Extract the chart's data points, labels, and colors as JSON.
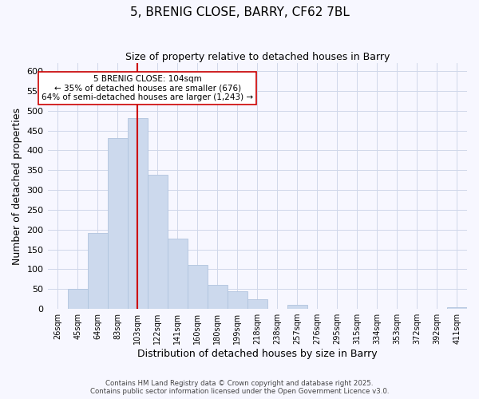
{
  "title": "5, BRENIG CLOSE, BARRY, CF62 7BL",
  "subtitle": "Size of property relative to detached houses in Barry",
  "xlabel": "Distribution of detached houses by size in Barry",
  "ylabel": "Number of detached properties",
  "bar_color": "#ccd9ed",
  "bar_edge_color": "#b0c4de",
  "categories": [
    "26sqm",
    "45sqm",
    "64sqm",
    "83sqm",
    "103sqm",
    "122sqm",
    "141sqm",
    "160sqm",
    "180sqm",
    "199sqm",
    "218sqm",
    "238sqm",
    "257sqm",
    "276sqm",
    "295sqm",
    "315sqm",
    "334sqm",
    "353sqm",
    "372sqm",
    "392sqm",
    "411sqm"
  ],
  "values": [
    0,
    50,
    192,
    432,
    482,
    338,
    178,
    110,
    60,
    44,
    24,
    0,
    10,
    0,
    0,
    0,
    0,
    0,
    0,
    0,
    5
  ],
  "vline_index": 4,
  "vline_color": "#cc0000",
  "annotation_line1": "5 BRENIG CLOSE: 104sqm",
  "annotation_line2": "← 35% of detached houses are smaller (676)",
  "annotation_line3": "64% of semi-detached houses are larger (1,243) →",
  "ylim": [
    0,
    620
  ],
  "yticks": [
    0,
    50,
    100,
    150,
    200,
    250,
    300,
    350,
    400,
    450,
    500,
    550,
    600
  ],
  "footer": "Contains HM Land Registry data © Crown copyright and database right 2025.\nContains public sector information licensed under the Open Government Licence v3.0.",
  "bg_color": "#f7f7ff",
  "grid_color": "#d0d8ea"
}
